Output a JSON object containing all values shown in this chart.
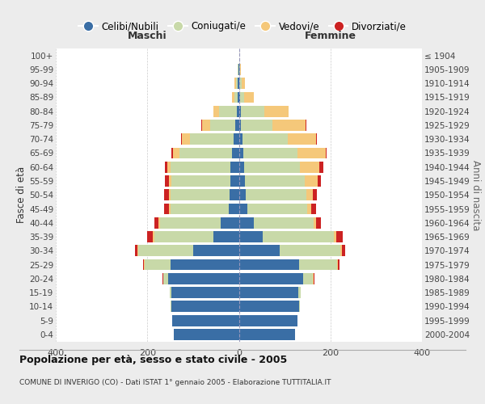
{
  "age_groups": [
    "0-4",
    "5-9",
    "10-14",
    "15-19",
    "20-24",
    "25-29",
    "30-34",
    "35-39",
    "40-44",
    "45-49",
    "50-54",
    "55-59",
    "60-64",
    "65-69",
    "70-74",
    "75-79",
    "80-84",
    "85-89",
    "90-94",
    "95-99",
    "100+"
  ],
  "birth_years": [
    "2000-2004",
    "1995-1999",
    "1990-1994",
    "1985-1989",
    "1980-1984",
    "1975-1979",
    "1970-1974",
    "1965-1969",
    "1960-1964",
    "1955-1959",
    "1950-1954",
    "1945-1949",
    "1940-1944",
    "1935-1939",
    "1930-1934",
    "1925-1929",
    "1920-1924",
    "1915-1919",
    "1910-1914",
    "1905-1909",
    "≤ 1904"
  ],
  "maschi_celibi": [
    143,
    145,
    148,
    148,
    155,
    150,
    100,
    55,
    40,
    22,
    20,
    18,
    18,
    15,
    12,
    8,
    5,
    3,
    2,
    1,
    0
  ],
  "maschi_coniugati": [
    0,
    0,
    1,
    3,
    10,
    55,
    120,
    130,
    132,
    128,
    130,
    130,
    132,
    115,
    95,
    55,
    38,
    6,
    4,
    1,
    0
  ],
  "maschi_vedovi": [
    0,
    0,
    0,
    0,
    1,
    2,
    2,
    3,
    3,
    3,
    3,
    4,
    7,
    14,
    18,
    18,
    12,
    6,
    3,
    1,
    0
  ],
  "maschi_divorziati": [
    0,
    0,
    0,
    0,
    1,
    2,
    5,
    12,
    10,
    10,
    10,
    10,
    5,
    3,
    2,
    1,
    0,
    0,
    0,
    0,
    0
  ],
  "femmine_celibi": [
    122,
    128,
    132,
    130,
    140,
    132,
    90,
    52,
    32,
    18,
    15,
    14,
    12,
    10,
    8,
    5,
    4,
    2,
    1,
    0,
    0
  ],
  "femmine_coniugati": [
    0,
    0,
    2,
    5,
    22,
    82,
    132,
    155,
    132,
    132,
    132,
    130,
    122,
    118,
    98,
    68,
    52,
    10,
    5,
    2,
    0
  ],
  "femmine_vedovi": [
    0,
    0,
    0,
    0,
    1,
    3,
    3,
    5,
    5,
    8,
    14,
    28,
    42,
    62,
    62,
    72,
    52,
    20,
    8,
    2,
    0
  ],
  "femmine_divorziati": [
    0,
    0,
    0,
    0,
    2,
    3,
    8,
    15,
    10,
    10,
    10,
    8,
    8,
    2,
    2,
    2,
    0,
    0,
    0,
    0,
    0
  ],
  "colors": {
    "celibi": "#3a6ea5",
    "coniugati": "#c8d9a8",
    "vedovi": "#f5c87a",
    "divorziati": "#cc2222"
  },
  "title": "Popolazione per età, sesso e stato civile - 2005",
  "subtitle": "COMUNE DI INVERIGO (CO) - Dati ISTAT 1° gennaio 2005 - Elaborazione TUTTITALIA.IT",
  "xlabel_left": "Maschi",
  "xlabel_right": "Femmine",
  "ylabel_left": "Fasce di età",
  "ylabel_right": "Anni di nascita",
  "xlim": 400,
  "bg_color": "#ececec",
  "plot_bg": "#ffffff"
}
